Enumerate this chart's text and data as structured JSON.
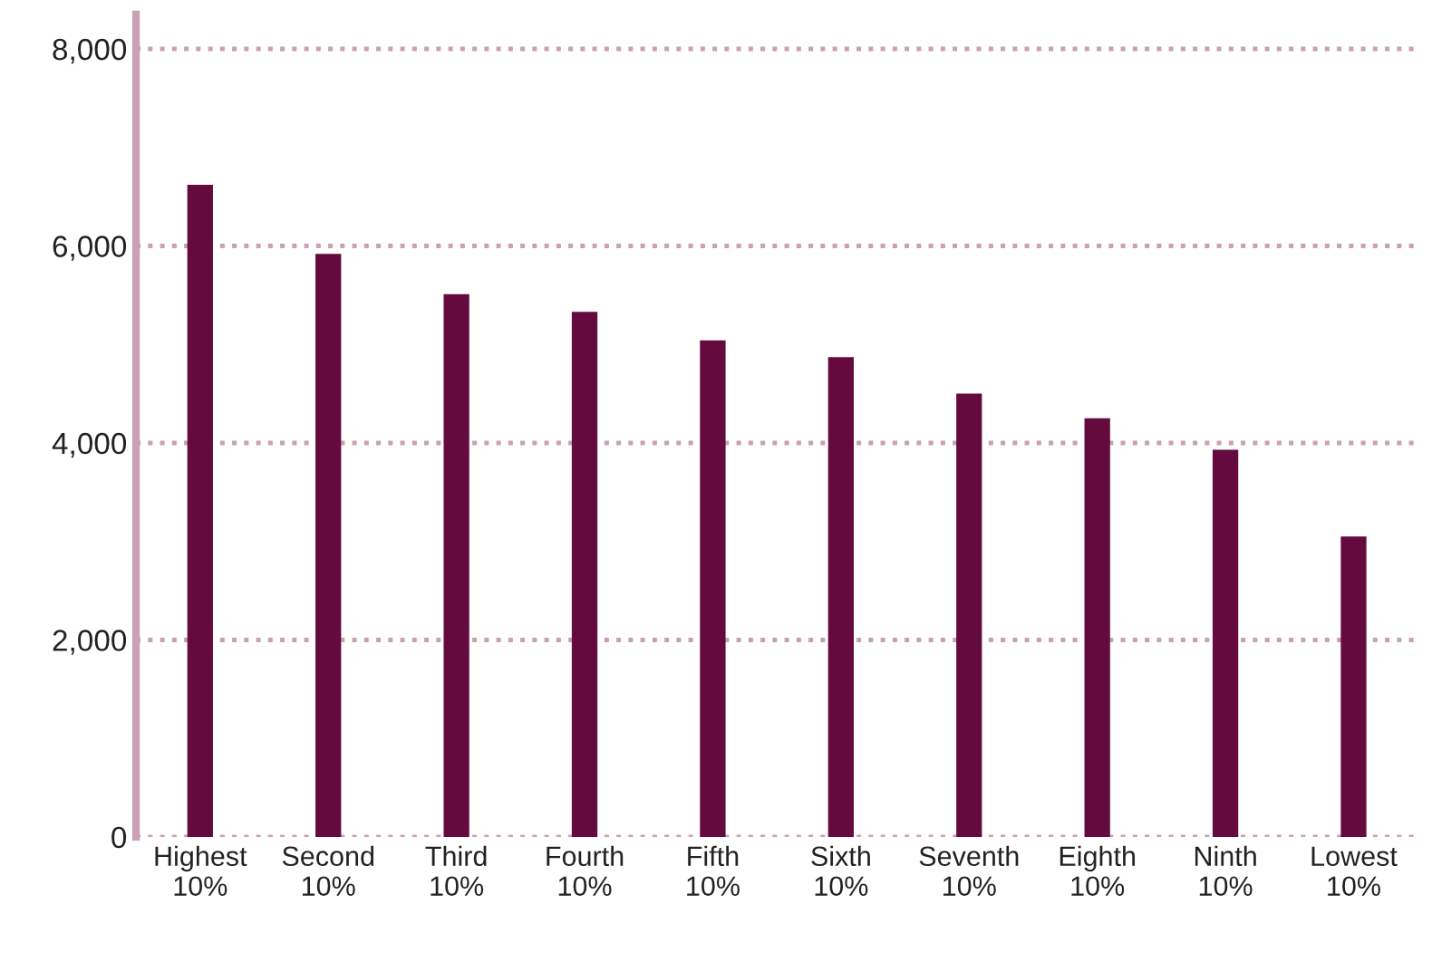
{
  "chart_data": {
    "type": "bar",
    "categories": [
      "Highest\n10%",
      "Second\n10%",
      "Third\n10%",
      "Fourth\n10%",
      "Fifth\n10%",
      "Sixth\n10%",
      "Seventh\n10%",
      "Eighth\n10%",
      "Ninth\n10%",
      "Lowest\n10%"
    ],
    "values": [
      6620,
      5920,
      5510,
      5330,
      5040,
      4870,
      4500,
      4250,
      3930,
      3050
    ],
    "color": "#640a3f",
    "ylim": [
      0,
      8350
    ],
    "yticks": [
      {
        "value": 0,
        "label": "0"
      },
      {
        "value": 2000,
        "label": "2,000"
      },
      {
        "value": 4000,
        "label": "4,000"
      },
      {
        "value": 6000,
        "label": "6,000"
      },
      {
        "value": 8000,
        "label": "8,000"
      }
    ],
    "grid": "y",
    "line_style": "dotted"
  }
}
